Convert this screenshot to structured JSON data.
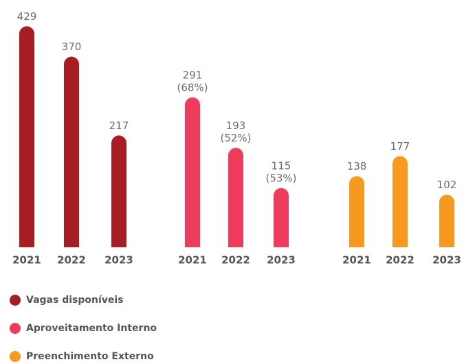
{
  "chart_data": {
    "type": "bar",
    "categories": [
      "2021",
      "2022",
      "2023"
    ],
    "series": [
      {
        "name": "Vagas disponíveis",
        "color": "#a81c24",
        "values": [
          429,
          370,
          217
        ]
      },
      {
        "name": "Aproveitamento Interno",
        "color": "#f03c5c",
        "values": [
          291,
          193,
          115
        ],
        "share_values": [
          68,
          52,
          53
        ],
        "share_labels": [
          "(68%)",
          "(52%)",
          "(53%)"
        ]
      },
      {
        "name": "Preenchimento Externo",
        "color": "#f7991f",
        "values": [
          138,
          177,
          102
        ]
      }
    ],
    "legend": "bottom-left"
  }
}
